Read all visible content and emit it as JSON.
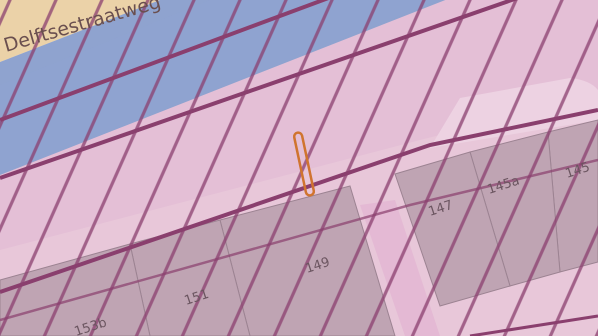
{
  "map": {
    "street_name": "Delftsestraatweg",
    "house_numbers": [
      "145a",
      "145",
      "147",
      "149",
      "151",
      "153b"
    ],
    "colors": {
      "background": "#f2ece4",
      "road_fill": "#ebd2a8",
      "railway_fill": "#8fa3cf",
      "zone_fill": "#e4bfd6",
      "zone_stripe": "#8a3f6e",
      "building_fill": "#bfa4b3",
      "building_edge": "#9c8392",
      "marker_stroke": "#d0742f"
    }
  }
}
